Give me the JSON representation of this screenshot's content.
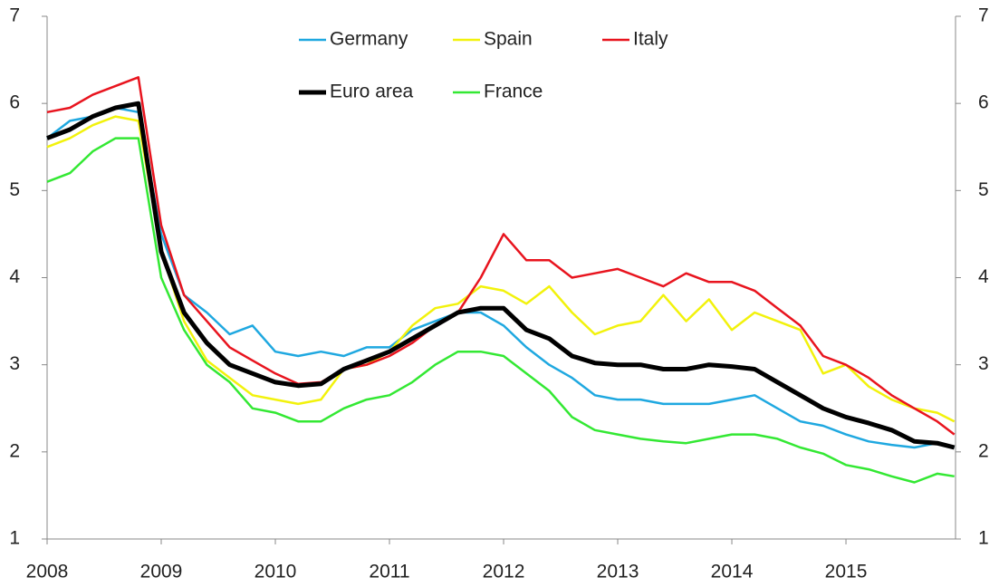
{
  "chart_data": {
    "type": "line",
    "x": [
      2008.0,
      2008.2,
      2008.4,
      2008.6,
      2008.8,
      2009.0,
      2009.2,
      2009.4,
      2009.6,
      2009.8,
      2010.0,
      2010.2,
      2010.4,
      2010.6,
      2010.8,
      2011.0,
      2011.2,
      2011.4,
      2011.6,
      2011.8,
      2012.0,
      2012.2,
      2012.4,
      2012.6,
      2012.8,
      2013.0,
      2013.2,
      2013.4,
      2013.6,
      2013.8,
      2014.0,
      2014.2,
      2014.4,
      2014.6,
      2014.8,
      2015.0,
      2015.2,
      2015.4,
      2015.6,
      2015.8,
      2015.95
    ],
    "series": [
      {
        "name": "Germany",
        "color": "#1fa8e0",
        "values": [
          5.6,
          5.8,
          5.85,
          5.95,
          5.9,
          4.5,
          3.8,
          3.6,
          3.35,
          3.45,
          3.15,
          3.1,
          3.15,
          3.1,
          3.2,
          3.2,
          3.4,
          3.5,
          3.6,
          3.6,
          3.45,
          3.2,
          3.0,
          2.85,
          2.65,
          2.6,
          2.6,
          2.55,
          2.55,
          2.55,
          2.6,
          2.65,
          2.5,
          2.35,
          2.3,
          2.2,
          2.12,
          2.08,
          2.05,
          2.1,
          2.05
        ]
      },
      {
        "name": "Spain",
        "color": "#f2f20c",
        "values": [
          5.5,
          5.6,
          5.75,
          5.85,
          5.8,
          4.3,
          3.5,
          3.05,
          2.85,
          2.65,
          2.6,
          2.55,
          2.6,
          2.95,
          3.0,
          3.15,
          3.45,
          3.65,
          3.7,
          3.9,
          3.85,
          3.7,
          3.9,
          3.6,
          3.35,
          3.45,
          3.5,
          3.8,
          3.5,
          3.75,
          3.4,
          3.6,
          3.5,
          3.4,
          2.9,
          3.0,
          2.75,
          2.6,
          2.5,
          2.45,
          2.35
        ]
      },
      {
        "name": "Italy",
        "color": "#e8141e",
        "values": [
          5.9,
          5.95,
          6.1,
          6.2,
          6.3,
          4.6,
          3.8,
          3.5,
          3.2,
          3.05,
          2.9,
          2.78,
          2.8,
          2.95,
          3.0,
          3.1,
          3.25,
          3.45,
          3.6,
          4.0,
          4.5,
          4.2,
          4.2,
          4.0,
          4.05,
          4.1,
          4.0,
          3.9,
          4.05,
          3.95,
          3.95,
          3.85,
          3.65,
          3.45,
          3.1,
          3.0,
          2.85,
          2.65,
          2.5,
          2.35,
          2.2
        ]
      },
      {
        "name": "Euro area",
        "color": "#000000",
        "values": [
          5.6,
          5.7,
          5.85,
          5.95,
          6.0,
          4.3,
          3.6,
          3.25,
          3.0,
          2.9,
          2.8,
          2.76,
          2.78,
          2.95,
          3.05,
          3.15,
          3.3,
          3.45,
          3.6,
          3.65,
          3.65,
          3.4,
          3.3,
          3.1,
          3.02,
          3.0,
          3.0,
          2.95,
          2.95,
          3.0,
          2.98,
          2.95,
          2.8,
          2.65,
          2.5,
          2.4,
          2.33,
          2.25,
          2.12,
          2.1,
          2.05
        ]
      },
      {
        "name": "France",
        "color": "#33e833",
        "values": [
          5.1,
          5.2,
          5.45,
          5.6,
          5.6,
          4.0,
          3.4,
          3.0,
          2.8,
          2.5,
          2.45,
          2.35,
          2.35,
          2.5,
          2.6,
          2.65,
          2.8,
          3.0,
          3.15,
          3.15,
          3.1,
          2.9,
          2.7,
          2.4,
          2.25,
          2.2,
          2.15,
          2.12,
          2.1,
          2.15,
          2.2,
          2.2,
          2.15,
          2.05,
          1.98,
          1.85,
          1.8,
          1.72,
          1.65,
          1.75,
          1.72
        ]
      }
    ],
    "xlim": [
      2008,
      2015.96
    ],
    "xticks": [
      2008,
      2009,
      2010,
      2011,
      2012,
      2013,
      2014,
      2015
    ],
    "ylim": [
      1,
      7
    ],
    "yticks": [
      1,
      2,
      3,
      4,
      5,
      6,
      7
    ]
  }
}
